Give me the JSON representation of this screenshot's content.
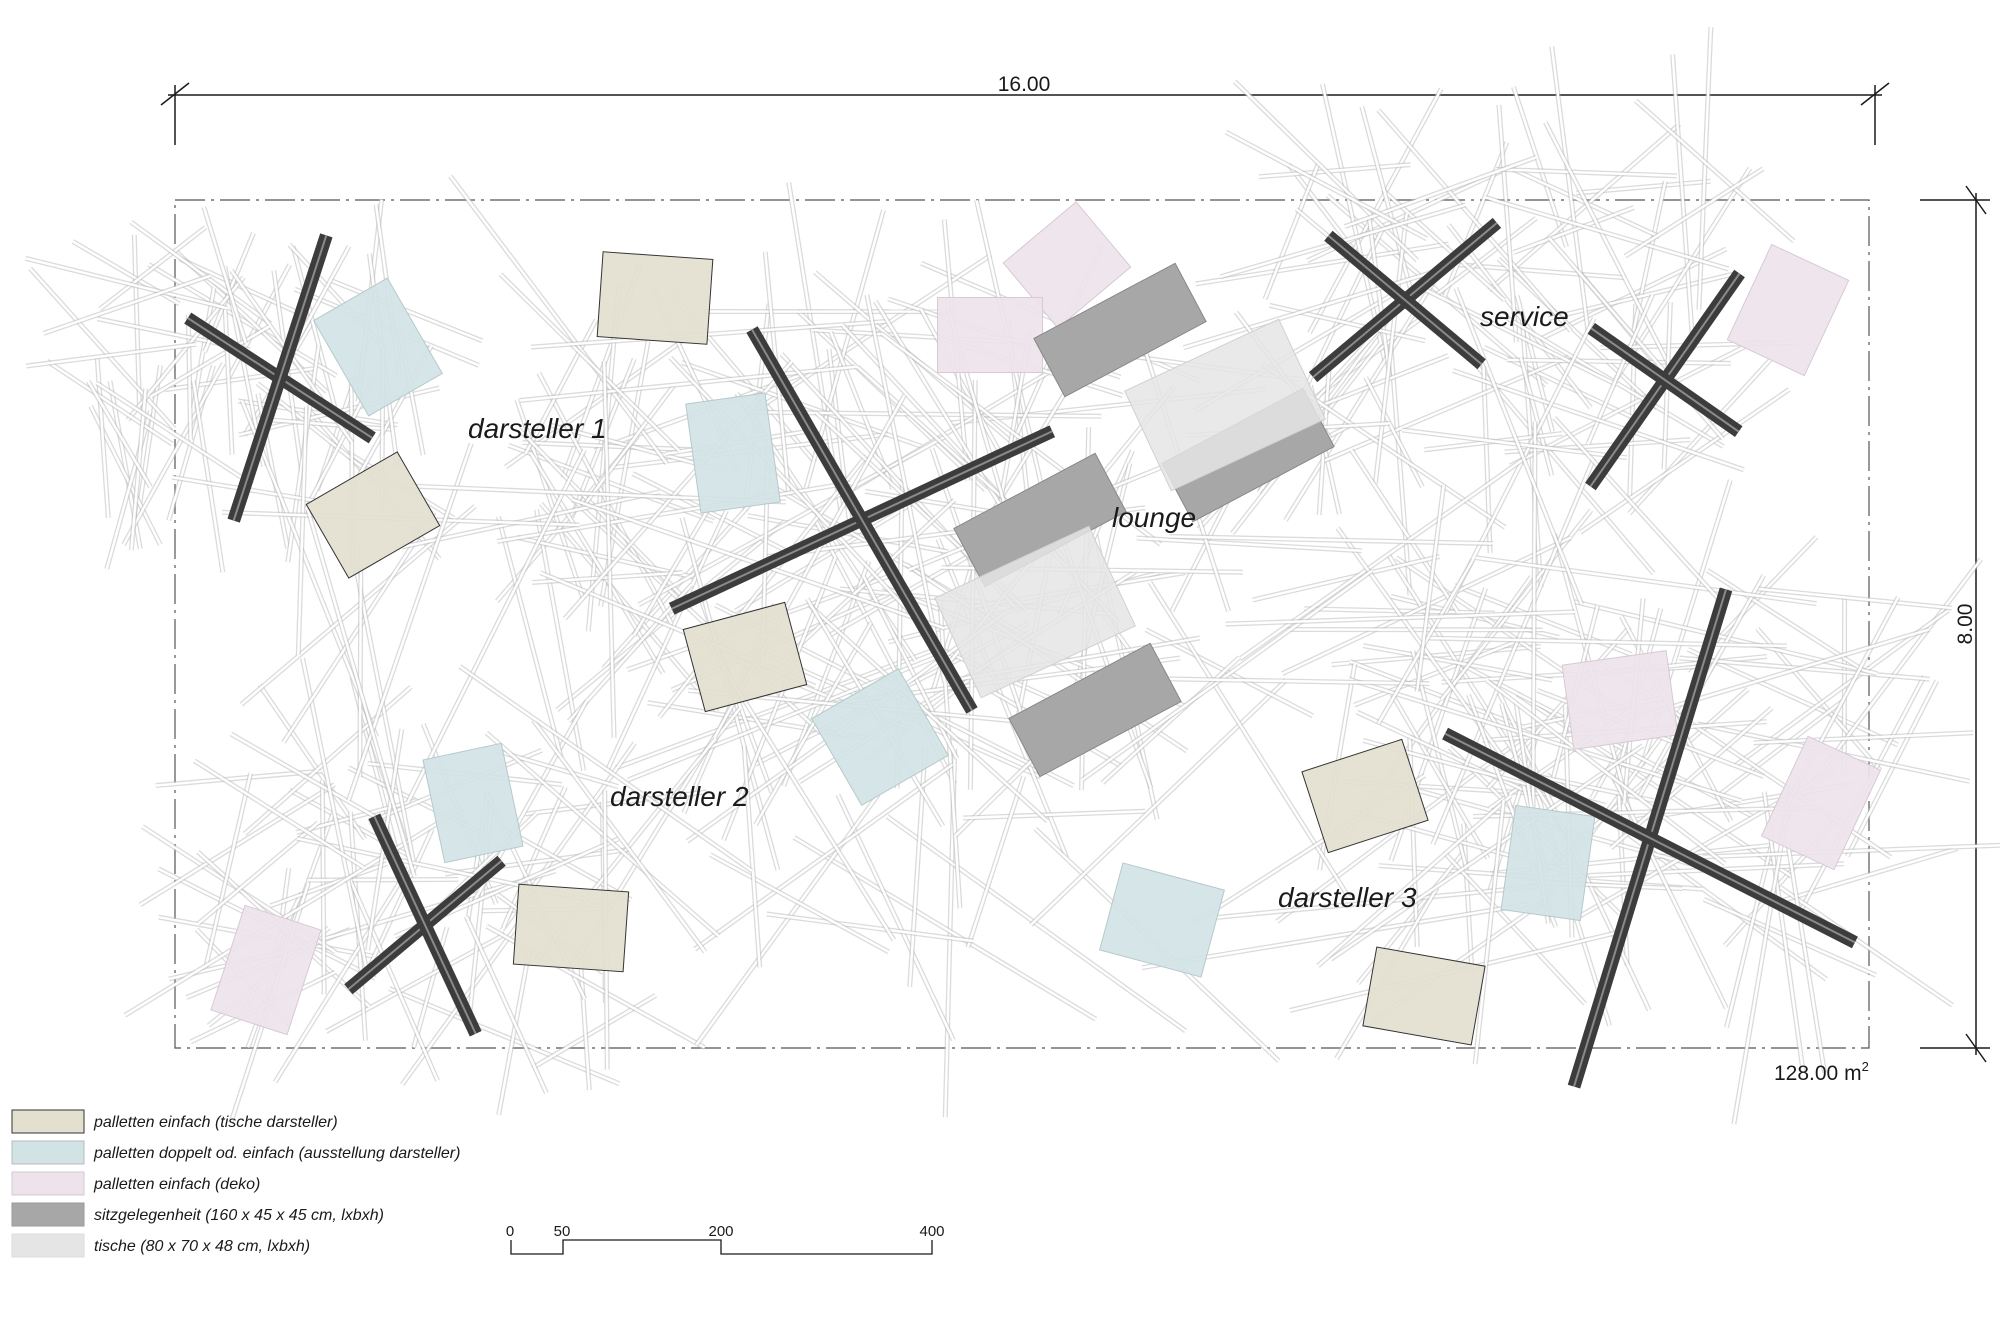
{
  "dimensions": {
    "width_label": "16.00",
    "height_label": "8.00",
    "area_label": "128.00 m",
    "area_sup": "2"
  },
  "zones": {
    "darsteller_1": "darsteller 1",
    "darsteller_2": "darsteller 2",
    "darsteller_3": "darsteller 3",
    "lounge": "lounge",
    "service": "service"
  },
  "colors": {
    "tische_darsteller": "#e3e0cf",
    "ausstellung_darsteller": "#d2e3e5",
    "deko": "#eee3ec",
    "sitzgelegenheit": "#a7a7a7",
    "tische": "#e5e5e5",
    "beam": "#3c3c3c",
    "sticks": "#bdbdbd"
  },
  "legend": [
    {
      "key": "tische_darsteller",
      "label": "palletten einfach (tische darsteller)"
    },
    {
      "key": "ausstellung_darsteller",
      "label": "palletten doppelt od. einfach (ausstellung darsteller)"
    },
    {
      "key": "deko",
      "label": "palletten einfach (deko)"
    },
    {
      "key": "sitzgelegenheit",
      "label": "sitzgelegenheit (160 x 45 x 45 cm, lxbxh)"
    },
    {
      "key": "tische",
      "label": "tische  (80 x 70 x 48 cm, lxbxh)"
    }
  ],
  "scale_bar": {
    "ticks": [
      "0",
      "50",
      "200",
      "400"
    ]
  }
}
